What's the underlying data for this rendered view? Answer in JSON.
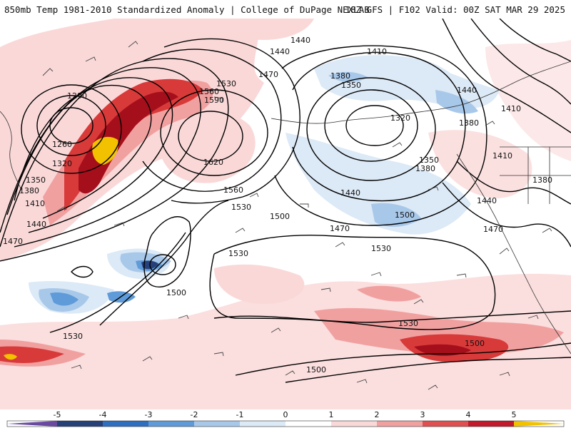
{
  "header": {
    "title_left": "850mb Temp 1981-2010 Standardized Anomaly | College of DuPage NEXLAB",
    "title_right": "18Z GFS | F102 Valid: 00Z SAT MAR 29 2025"
  },
  "colorbar": {
    "ticks": [
      "-5",
      "-4",
      "-3",
      "-2",
      "-1",
      "0",
      "1",
      "2",
      "3",
      "4",
      "5"
    ],
    "colors": [
      "#6a4aa0",
      "#26407a",
      "#2f6fc0",
      "#5f9bd8",
      "#a8c8ea",
      "#dce9f6",
      "#ffffff",
      "#fad8d8",
      "#f1a0a0",
      "#e05050",
      "#c21a2a",
      "#8a0a18",
      "#f2c200"
    ]
  },
  "map": {
    "colors": {
      "light_red": "#fad8d8",
      "pink": "#f1a0a0",
      "red": "#d83a3a",
      "dark_red": "#a50f1c",
      "yellow": "#f2c200",
      "light_blue": "#dce9f6",
      "blue": "#a8c8ea",
      "mid_blue": "#5f9bd8",
      "dark_blue": "#26407a"
    },
    "contour_labels": [
      "1440",
      "1410",
      "1440",
      "1470",
      "1530",
      "1560",
      "1590",
      "1290",
      "1260",
      "1320",
      "1350",
      "1380",
      "1410",
      "1440",
      "1470",
      "1620",
      "1560",
      "1530",
      "1380",
      "1350",
      "1320",
      "1350",
      "1380",
      "1440",
      "1500",
      "1470",
      "1500",
      "1530",
      "1530",
      "1500",
      "1530",
      "1530",
      "1500",
      "1500",
      "1440",
      "1410",
      "1380",
      "1410",
      "1380",
      "1440",
      "1470"
    ]
  }
}
